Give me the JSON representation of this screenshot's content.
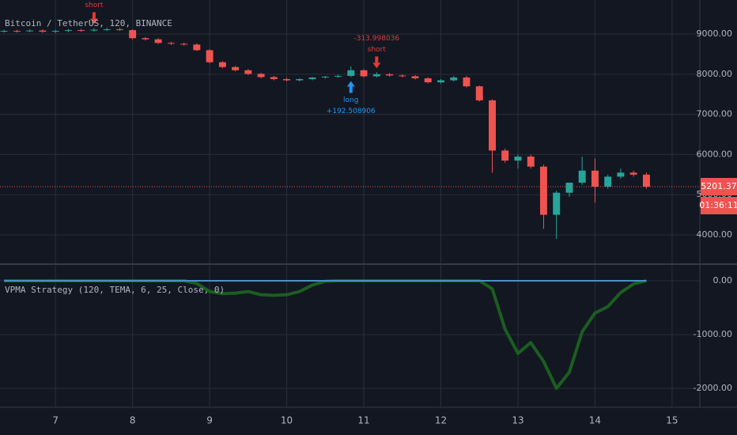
{
  "chart_data": [
    {
      "type": "candlestick",
      "title": "Bitcoin / TetherUS, 120, BINANCE",
      "x": [
        6.333,
        6.5,
        6.667,
        6.833,
        7.0,
        7.167,
        7.333,
        7.5,
        7.667,
        7.833,
        8.0,
        8.167,
        8.333,
        8.5,
        8.667,
        8.833,
        9.0,
        9.167,
        9.333,
        9.5,
        9.667,
        9.833,
        10.0,
        10.167,
        10.333,
        10.5,
        10.667,
        10.833,
        11.0,
        11.167,
        11.333,
        11.5,
        11.667,
        11.833,
        12.0,
        12.167,
        12.333,
        12.5,
        12.667,
        12.833,
        13.0,
        13.167,
        13.333,
        13.5,
        13.667,
        13.833,
        14.0,
        14.167,
        14.333,
        14.5,
        14.667
      ],
      "open": [
        9070,
        9080,
        9070,
        9090,
        9060,
        9080,
        9100,
        9090,
        9110,
        9120,
        9100,
        8900,
        8870,
        8780,
        8760,
        8740,
        8600,
        8300,
        8180,
        8100,
        8010,
        7930,
        7880,
        7850,
        7880,
        7920,
        7940,
        7960,
        8100,
        7950,
        8000,
        7970,
        7950,
        7900,
        7800,
        7850,
        7920,
        7700,
        7350,
        6100,
        5850,
        5950,
        5700,
        4500,
        5050,
        5300,
        5600,
        5200,
        5450,
        5550,
        5500
      ],
      "high": [
        9110,
        9110,
        9120,
        9120,
        9110,
        9130,
        9130,
        9150,
        9160,
        9160,
        9120,
        8930,
        8900,
        8810,
        8790,
        8770,
        8630,
        8330,
        8210,
        8130,
        8040,
        7960,
        7910,
        7900,
        7930,
        7960,
        7990,
        8200,
        8130,
        8050,
        8030,
        8000,
        7980,
        7930,
        7880,
        7960,
        7960,
        7720,
        7380,
        6150,
        6000,
        6000,
        5750,
        5100,
        5300,
        5950,
        5900,
        5500,
        5650,
        5600,
        5550
      ],
      "low": [
        9040,
        9040,
        9050,
        9030,
        9030,
        9050,
        9060,
        9060,
        9080,
        9080,
        8870,
        8840,
        8750,
        8730,
        8710,
        8580,
        8270,
        8150,
        8070,
        7980,
        7900,
        7850,
        7820,
        7820,
        7850,
        7890,
        7910,
        7930,
        7920,
        7920,
        7940,
        7920,
        7870,
        7770,
        7770,
        7820,
        7670,
        7320,
        5550,
        5800,
        5650,
        5650,
        4150,
        3900,
        4950,
        5250,
        4800,
        5150,
        5400,
        5450,
        5150
      ],
      "close": [
        9080,
        9070,
        9090,
        9060,
        9080,
        9100,
        9090,
        9110,
        9120,
        9100,
        8900,
        8870,
        8780,
        8760,
        8740,
        8600,
        8300,
        8180,
        8100,
        8010,
        7930,
        7880,
        7850,
        7880,
        7920,
        7940,
        7960,
        8100,
        7950,
        8000,
        7970,
        7950,
        7900,
        7800,
        7850,
        7920,
        7700,
        7350,
        6100,
        5850,
        5950,
        5700,
        4500,
        5050,
        5300,
        5600,
        5200,
        5450,
        5550,
        5500,
        5200
      ],
      "up_color": "#26a69a",
      "down_color": "#ef5350",
      "xlim": [
        6.28,
        15.36
      ],
      "xticks": [
        7,
        8,
        9,
        10,
        11,
        12,
        13,
        14,
        15
      ],
      "ylim": [
        3290,
        9850
      ],
      "yticks": [
        {
          "value": 4000,
          "label": "4000.00"
        },
        {
          "value": 5000,
          "label": "5000.00"
        },
        {
          "value": 6000,
          "label": "6000.00"
        },
        {
          "value": 7000,
          "label": "7000.00"
        },
        {
          "value": 8000,
          "label": "8000.00"
        },
        {
          "value": 9000,
          "label": "9000.00"
        }
      ],
      "grid": true,
      "last_price": 5201.37,
      "countdown": "01:36:11",
      "markers": [
        {
          "x": 7.5,
          "side": "short",
          "text": "short"
        },
        {
          "x": 10.833,
          "side": "long",
          "text": "long",
          "pnl": "+192.508906"
        },
        {
          "x": 11.167,
          "side": "short",
          "text": "short",
          "pnl": "-313.998036"
        }
      ]
    },
    {
      "type": "line",
      "title": "VPMA Strategy (120, TEMA, 6, 25, Close, 0)",
      "x": [
        6.333,
        6.5,
        6.667,
        6.833,
        7.0,
        7.167,
        7.333,
        7.5,
        7.667,
        7.833,
        8.0,
        8.167,
        8.333,
        8.5,
        8.667,
        8.833,
        9.0,
        9.167,
        9.333,
        9.5,
        9.667,
        9.833,
        10.0,
        10.167,
        10.333,
        10.5,
        10.667,
        10.833,
        11.0,
        11.167,
        11.333,
        11.5,
        11.667,
        11.833,
        12.0,
        12.167,
        12.333,
        12.5,
        12.667,
        12.833,
        13.0,
        13.167,
        13.333,
        13.5,
        13.667,
        13.833,
        14.0,
        14.167,
        14.333,
        14.5,
        14.667
      ],
      "series": [
        {
          "color": "#1b5e20",
          "width": 4,
          "values": [
            0,
            0,
            0,
            0,
            0,
            0,
            0,
            0,
            0,
            0,
            0,
            0,
            0,
            0,
            0,
            -50,
            -200,
            -240,
            -230,
            -200,
            -260,
            -270,
            -260,
            -200,
            -80,
            -10,
            0,
            0,
            0,
            0,
            0,
            0,
            0,
            0,
            0,
            0,
            0,
            0,
            -150,
            -900,
            -1350,
            -1150,
            -1500,
            -2000,
            -1700,
            -950,
            -600,
            -480,
            -220,
            -60,
            0
          ]
        },
        {
          "color": "#4a90c8",
          "width": 2,
          "values": [
            0,
            0,
            0,
            0,
            0,
            0,
            0,
            0,
            0,
            0,
            0,
            0,
            0,
            0,
            0,
            0,
            0,
            0,
            0,
            0,
            0,
            0,
            0,
            0,
            0,
            0,
            0,
            0,
            0,
            0,
            0,
            0,
            0,
            0,
            0,
            0,
            0,
            0,
            0,
            0,
            0,
            0,
            0,
            0,
            0,
            0,
            0,
            0,
            0,
            0,
            0
          ]
        }
      ],
      "xlim": [
        6.28,
        15.36
      ],
      "xticks": [
        7,
        8,
        9,
        10,
        11,
        12,
        13,
        14,
        15
      ],
      "ylim": [
        -2353,
        294
      ],
      "yticks": [
        {
          "value": 0,
          "label": "0.00"
        },
        {
          "value": -1000,
          "label": "-1000.00"
        },
        {
          "value": -2000,
          "label": "-2000.00"
        }
      ],
      "grid": true
    }
  ]
}
